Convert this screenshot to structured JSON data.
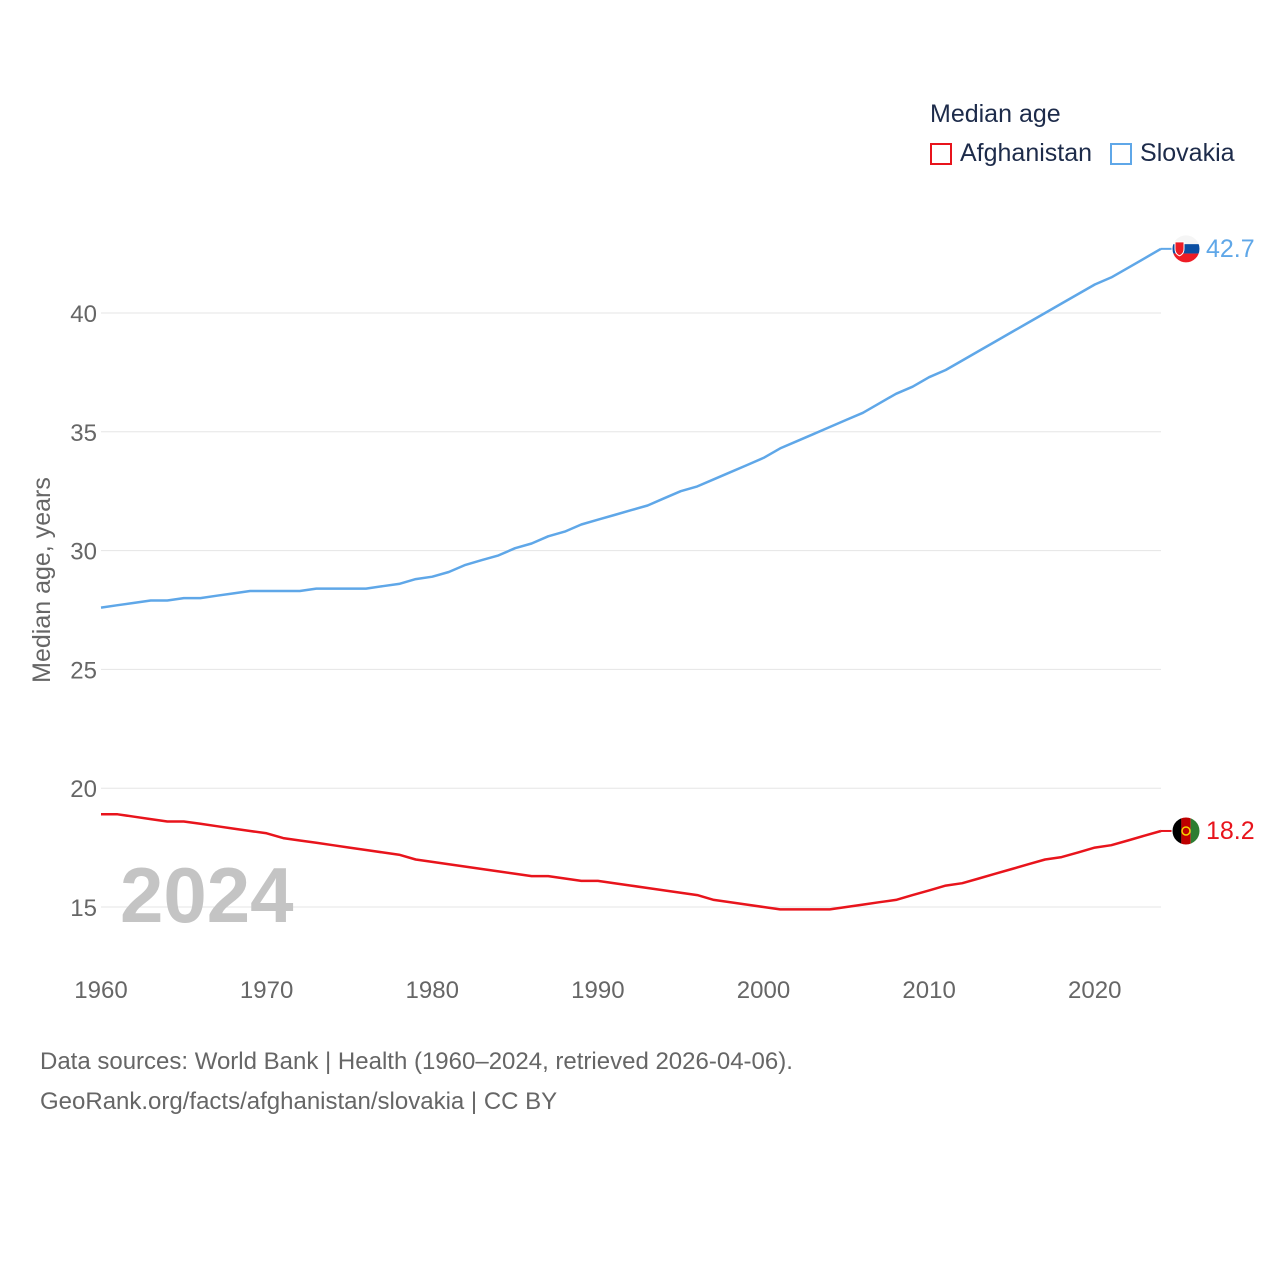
{
  "legend": {
    "title": "Median age",
    "afghanistan": "Afghanistan",
    "slovakia": "Slovakia"
  },
  "colors": {
    "afghanistan": "#e8141c",
    "slovakia": "#5fa7e8",
    "grid": "#e5e5e5",
    "axis_text": "#666666",
    "year": "#c4c4c4"
  },
  "chart_data": {
    "type": "line",
    "title": "Median age",
    "ylabel": "Median age, years",
    "xlabel": "",
    "xlim": [
      1960,
      2024
    ],
    "ylim": [
      13,
      43.5
    ],
    "y_ticks": [
      15,
      20,
      25,
      30,
      35,
      40
    ],
    "x_ticks": [
      1960,
      1970,
      1980,
      1990,
      2000,
      2010,
      2020
    ],
    "current_year": "2024",
    "x": [
      1960,
      1961,
      1962,
      1963,
      1964,
      1965,
      1966,
      1967,
      1968,
      1969,
      1970,
      1971,
      1972,
      1973,
      1974,
      1975,
      1976,
      1977,
      1978,
      1979,
      1980,
      1981,
      1982,
      1983,
      1984,
      1985,
      1986,
      1987,
      1988,
      1989,
      1990,
      1991,
      1992,
      1993,
      1994,
      1995,
      1996,
      1997,
      1998,
      1999,
      2000,
      2001,
      2002,
      2003,
      2004,
      2005,
      2006,
      2007,
      2008,
      2009,
      2010,
      2011,
      2012,
      2013,
      2014,
      2015,
      2016,
      2017,
      2018,
      2019,
      2020,
      2021,
      2022,
      2023,
      2024
    ],
    "series": [
      {
        "name": "Afghanistan",
        "color": "#e8141c",
        "end_label": "18.2",
        "values": [
          18.9,
          18.9,
          18.8,
          18.7,
          18.6,
          18.6,
          18.5,
          18.4,
          18.3,
          18.2,
          18.1,
          17.9,
          17.8,
          17.7,
          17.6,
          17.5,
          17.4,
          17.3,
          17.2,
          17.0,
          16.9,
          16.8,
          16.7,
          16.6,
          16.5,
          16.4,
          16.3,
          16.3,
          16.2,
          16.1,
          16.1,
          16.0,
          15.9,
          15.8,
          15.7,
          15.6,
          15.5,
          15.3,
          15.2,
          15.1,
          15.0,
          14.9,
          14.9,
          14.9,
          14.9,
          15.0,
          15.1,
          15.2,
          15.3,
          15.5,
          15.7,
          15.9,
          16.0,
          16.2,
          16.4,
          16.6,
          16.8,
          17.0,
          17.1,
          17.3,
          17.5,
          17.6,
          17.8,
          18.0,
          18.2
        ]
      },
      {
        "name": "Slovakia",
        "color": "#5fa7e8",
        "end_label": "42.7",
        "values": [
          27.6,
          27.7,
          27.8,
          27.9,
          27.9,
          28.0,
          28.0,
          28.1,
          28.2,
          28.3,
          28.3,
          28.3,
          28.3,
          28.4,
          28.4,
          28.4,
          28.4,
          28.5,
          28.6,
          28.8,
          28.9,
          29.1,
          29.4,
          29.6,
          29.8,
          30.1,
          30.3,
          30.6,
          30.8,
          31.1,
          31.3,
          31.5,
          31.7,
          31.9,
          32.2,
          32.5,
          32.7,
          33.0,
          33.3,
          33.6,
          33.9,
          34.3,
          34.6,
          34.9,
          35.2,
          35.5,
          35.8,
          36.2,
          36.6,
          36.9,
          37.3,
          37.6,
          38.0,
          38.4,
          38.8,
          39.2,
          39.6,
          40.0,
          40.4,
          40.8,
          41.2,
          41.5,
          41.9,
          42.3,
          42.7
        ]
      }
    ]
  },
  "footer": {
    "line1": "Data sources: World Bank | Health (1960–2024, retrieved 2026-04-06).",
    "line2": "GeoRank.org/facts/afghanistan/slovakia | CC BY"
  }
}
